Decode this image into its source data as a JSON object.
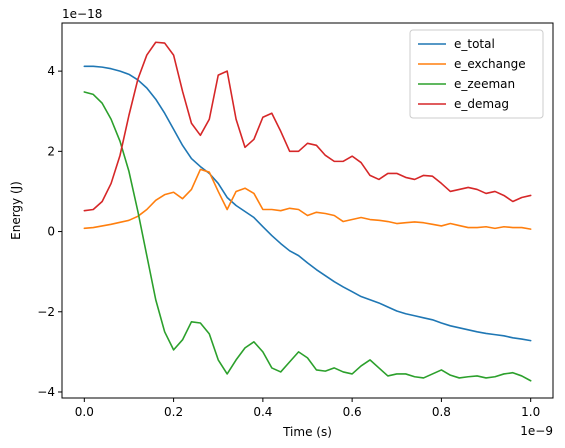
{
  "chart_data": {
    "type": "line",
    "xlabel": "Time (s)",
    "ylabel": "Energy (J)",
    "x_offset_label": "1e−9",
    "y_offset_label": "1e−18",
    "x_scale": 1e-09,
    "y_scale": 1e-18,
    "xlim": [
      -0.05,
      1.05
    ],
    "ylim": [
      -4.15,
      5.2
    ],
    "x_ticks": [
      0.0,
      0.2,
      0.4,
      0.6,
      0.8,
      1.0
    ],
    "x_tick_labels": [
      "0.0",
      "0.2",
      "0.4",
      "0.6",
      "0.8",
      "1.0"
    ],
    "y_ticks": [
      -4,
      -2,
      0,
      2,
      4
    ],
    "y_tick_labels": [
      "−4",
      "−2",
      "0",
      "2",
      "4"
    ],
    "grid": false,
    "legend_position": "top-right",
    "x": [
      0.0,
      0.02,
      0.04,
      0.06,
      0.08,
      0.1,
      0.12,
      0.14,
      0.16,
      0.18,
      0.2,
      0.22,
      0.24,
      0.26,
      0.28,
      0.3,
      0.32,
      0.34,
      0.36,
      0.38,
      0.4,
      0.42,
      0.44,
      0.46,
      0.48,
      0.5,
      0.52,
      0.54,
      0.56,
      0.58,
      0.6,
      0.62,
      0.64,
      0.66,
      0.68,
      0.7,
      0.72,
      0.74,
      0.76,
      0.78,
      0.8,
      0.82,
      0.84,
      0.86,
      0.88,
      0.9,
      0.92,
      0.94,
      0.96,
      0.98,
      1.0
    ],
    "series": [
      {
        "name": "e_total",
        "color": "#1f77b4",
        "values": [
          4.12,
          4.12,
          4.1,
          4.06,
          4.0,
          3.92,
          3.78,
          3.58,
          3.3,
          2.95,
          2.55,
          2.15,
          1.82,
          1.62,
          1.45,
          1.2,
          0.85,
          0.65,
          0.5,
          0.35,
          0.12,
          -0.1,
          -0.3,
          -0.48,
          -0.6,
          -0.78,
          -0.95,
          -1.1,
          -1.25,
          -1.38,
          -1.5,
          -1.62,
          -1.7,
          -1.78,
          -1.88,
          -1.98,
          -2.05,
          -2.1,
          -2.15,
          -2.2,
          -2.28,
          -2.35,
          -2.4,
          -2.45,
          -2.5,
          -2.54,
          -2.57,
          -2.6,
          -2.65,
          -2.68,
          -2.72
        ]
      },
      {
        "name": "e_exchange",
        "color": "#ff7f0e",
        "values": [
          0.08,
          0.1,
          0.14,
          0.18,
          0.23,
          0.28,
          0.38,
          0.55,
          0.78,
          0.92,
          0.98,
          0.82,
          1.05,
          1.55,
          1.48,
          1.0,
          0.55,
          1.0,
          1.08,
          0.95,
          0.55,
          0.55,
          0.52,
          0.58,
          0.55,
          0.4,
          0.48,
          0.45,
          0.4,
          0.25,
          0.3,
          0.35,
          0.3,
          0.28,
          0.25,
          0.2,
          0.22,
          0.24,
          0.22,
          0.18,
          0.14,
          0.2,
          0.15,
          0.1,
          0.1,
          0.12,
          0.08,
          0.12,
          0.1,
          0.1,
          0.06
        ]
      },
      {
        "name": "e_zeeman",
        "color": "#2ca02c",
        "values": [
          3.48,
          3.42,
          3.2,
          2.8,
          2.25,
          1.5,
          0.5,
          -0.6,
          -1.7,
          -2.5,
          -2.95,
          -2.7,
          -2.25,
          -2.28,
          -2.55,
          -3.2,
          -3.55,
          -3.2,
          -2.9,
          -2.75,
          -3.0,
          -3.4,
          -3.5,
          -3.25,
          -3.0,
          -3.15,
          -3.45,
          -3.48,
          -3.4,
          -3.5,
          -3.55,
          -3.35,
          -3.2,
          -3.4,
          -3.6,
          -3.55,
          -3.55,
          -3.62,
          -3.65,
          -3.55,
          -3.45,
          -3.58,
          -3.65,
          -3.62,
          -3.6,
          -3.65,
          -3.62,
          -3.55,
          -3.52,
          -3.6,
          -3.72
        ]
      },
      {
        "name": "e_demag",
        "color": "#d62728",
        "values": [
          0.52,
          0.55,
          0.75,
          1.2,
          1.9,
          2.9,
          3.8,
          4.4,
          4.72,
          4.7,
          4.4,
          3.5,
          2.7,
          2.4,
          2.8,
          3.9,
          4.0,
          2.8,
          2.1,
          2.3,
          2.85,
          2.95,
          2.5,
          2.0,
          2.0,
          2.2,
          2.15,
          1.9,
          1.75,
          1.75,
          1.88,
          1.72,
          1.4,
          1.3,
          1.45,
          1.45,
          1.35,
          1.3,
          1.4,
          1.38,
          1.2,
          1.0,
          1.05,
          1.1,
          1.05,
          0.95,
          1.0,
          0.9,
          0.75,
          0.85,
          0.9
        ]
      }
    ]
  }
}
